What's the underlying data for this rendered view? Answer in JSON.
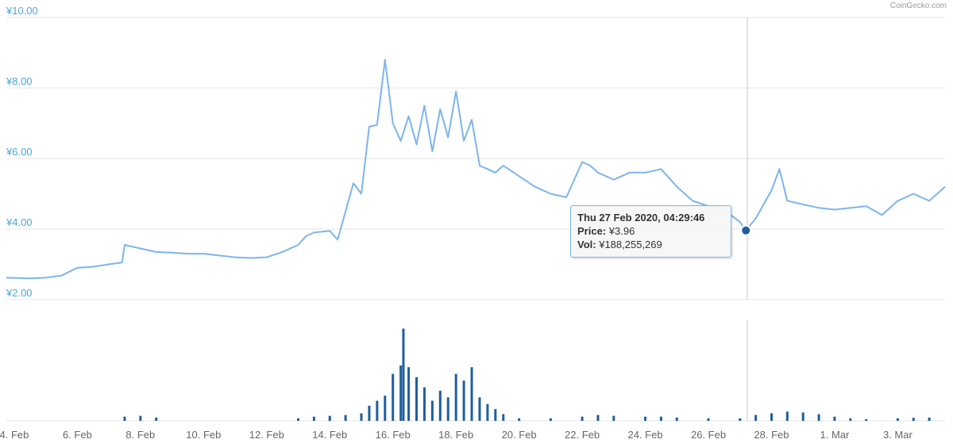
{
  "brand": "CoinGecko.com",
  "colors": {
    "price_line": "#7cb5ec",
    "volume_bar": "#1f5f9f",
    "axis_text": "#4aa8d8"
  },
  "tooltip": {
    "date": "Thu 27 Feb 2020, 04:29:46",
    "price_label": "Price:",
    "price_value": "¥3.96",
    "vol_label": "Vol:",
    "vol_value": "¥188,255,269"
  },
  "chart_data": [
    {
      "type": "line",
      "y_ticks": [
        "¥10.00",
        "¥8.00",
        "¥6.00",
        "¥4.00",
        "¥2.00"
      ],
      "ylim": [
        2,
        10
      ],
      "x_range": [
        "2020-02-03T18:00",
        "2020-03-04T12:00"
      ],
      "x_ticks": [
        "4. Feb",
        "6. Feb",
        "8. Feb",
        "10. Feb",
        "12. Feb",
        "14. Feb",
        "16. Feb",
        "18. Feb",
        "20. Feb",
        "22. Feb",
        "24. Feb",
        "26. Feb",
        "28. Feb",
        "1. Mar",
        "3. Mar"
      ],
      "grid": true,
      "x": [
        "2020-02-03T18:00",
        "2020-02-04T12:00",
        "2020-02-05T00:00",
        "2020-02-05T12:00",
        "2020-02-06T00:00",
        "2020-02-06T12:00",
        "2020-02-07T00:00",
        "2020-02-07T10:00",
        "2020-02-07T12:00",
        "2020-02-08T00:00",
        "2020-02-08T12:00",
        "2020-02-09T00:00",
        "2020-02-09T12:00",
        "2020-02-10T00:00",
        "2020-02-10T12:00",
        "2020-02-11T00:00",
        "2020-02-11T12:00",
        "2020-02-12T00:00",
        "2020-02-12T12:00",
        "2020-02-13T00:00",
        "2020-02-13T06:00",
        "2020-02-13T12:00",
        "2020-02-14T00:00",
        "2020-02-14T06:00",
        "2020-02-14T12:00",
        "2020-02-14T18:00",
        "2020-02-15T00:00",
        "2020-02-15T06:00",
        "2020-02-15T12:00",
        "2020-02-15T18:00",
        "2020-02-16T00:00",
        "2020-02-16T06:00",
        "2020-02-16T12:00",
        "2020-02-16T18:00",
        "2020-02-17T00:00",
        "2020-02-17T06:00",
        "2020-02-17T12:00",
        "2020-02-17T18:00",
        "2020-02-18T00:00",
        "2020-02-18T06:00",
        "2020-02-18T12:00",
        "2020-02-18T18:00",
        "2020-02-19T00:00",
        "2020-02-19T06:00",
        "2020-02-19T12:00",
        "2020-02-20T00:00",
        "2020-02-20T12:00",
        "2020-02-21T00:00",
        "2020-02-21T12:00",
        "2020-02-22T00:00",
        "2020-02-22T06:00",
        "2020-02-22T12:00",
        "2020-02-23T00:00",
        "2020-02-23T12:00",
        "2020-02-24T00:00",
        "2020-02-24T12:00",
        "2020-02-25T00:00",
        "2020-02-25T12:00",
        "2020-02-26T00:00",
        "2020-02-26T12:00",
        "2020-02-27T00:00",
        "2020-02-27T04:30",
        "2020-02-27T12:00",
        "2020-02-28T00:00",
        "2020-02-28T06:00",
        "2020-02-28T12:00",
        "2020-02-29T00:00",
        "2020-02-29T12:00",
        "2020-03-01T00:00",
        "2020-03-01T12:00",
        "2020-03-02T00:00",
        "2020-03-02T12:00",
        "2020-03-03T00:00",
        "2020-03-03T12:00",
        "2020-03-04T00:00",
        "2020-03-04T12:00"
      ],
      "y": [
        2.62,
        2.6,
        2.62,
        2.68,
        2.9,
        2.93,
        3.0,
        3.05,
        3.55,
        3.45,
        3.35,
        3.33,
        3.3,
        3.3,
        3.25,
        3.2,
        3.18,
        3.2,
        3.35,
        3.55,
        3.8,
        3.9,
        3.95,
        3.7,
        4.5,
        5.3,
        5.0,
        6.9,
        6.95,
        8.8,
        7.0,
        6.5,
        7.2,
        6.4,
        7.5,
        6.2,
        7.4,
        6.6,
        7.9,
        6.5,
        7.1,
        5.8,
        5.7,
        5.6,
        5.8,
        5.5,
        5.2,
        5.0,
        4.9,
        5.9,
        5.8,
        5.6,
        5.4,
        5.6,
        5.6,
        5.7,
        5.2,
        4.8,
        4.65,
        4.55,
        4.2,
        3.96,
        4.3,
        5.1,
        5.7,
        4.8,
        4.7,
        4.6,
        4.55,
        4.6,
        4.65,
        4.4,
        4.8,
        5.0,
        4.8,
        5.2
      ]
    },
    {
      "type": "bar",
      "title": "",
      "x_range": [
        "2020-02-03T18:00",
        "2020-03-04T12:00"
      ],
      "x": [
        "2020-02-07T12:00",
        "2020-02-08T00:00",
        "2020-02-08T12:00",
        "2020-02-13T00:00",
        "2020-02-13T12:00",
        "2020-02-14T00:00",
        "2020-02-14T12:00",
        "2020-02-15T00:00",
        "2020-02-15T06:00",
        "2020-02-15T12:00",
        "2020-02-15T18:00",
        "2020-02-16T00:00",
        "2020-02-16T06:00",
        "2020-02-16T08:00",
        "2020-02-16T12:00",
        "2020-02-16T18:00",
        "2020-02-17T00:00",
        "2020-02-17T06:00",
        "2020-02-17T12:00",
        "2020-02-17T18:00",
        "2020-02-18T00:00",
        "2020-02-18T06:00",
        "2020-02-18T12:00",
        "2020-02-18T18:00",
        "2020-02-19T00:00",
        "2020-02-19T06:00",
        "2020-02-19T12:00",
        "2020-02-20T00:00",
        "2020-02-21T00:00",
        "2020-02-22T00:00",
        "2020-02-22T12:00",
        "2020-02-23T00:00",
        "2020-02-24T00:00",
        "2020-02-24T12:00",
        "2020-02-25T00:00",
        "2020-02-26T00:00",
        "2020-02-27T00:00",
        "2020-02-27T12:00",
        "2020-02-28T00:00",
        "2020-02-28T12:00",
        "2020-02-29T00:00",
        "2020-02-29T12:00",
        "2020-03-01T00:00",
        "2020-03-01T12:00",
        "2020-03-02T00:00",
        "2020-03-03T00:00",
        "2020-03-03T12:00",
        "2020-03-04T00:00"
      ],
      "values": [
        2.5,
        3.0,
        2.0,
        1.5,
        2.5,
        3.0,
        3.5,
        4.5,
        9.0,
        12.0,
        15.0,
        28.0,
        33.0,
        55.0,
        32.0,
        26.0,
        20.0,
        12.0,
        18.0,
        14.0,
        28.0,
        24.0,
        32.0,
        14.0,
        10.0,
        7.0,
        4.0,
        1.5,
        1.5,
        2.5,
        3.5,
        3.0,
        2.5,
        2.5,
        2.0,
        1.5,
        1.5,
        3.5,
        4.5,
        5.5,
        5.0,
        4.0,
        2.5,
        1.5,
        1.0,
        1.5,
        1.8,
        2.0
      ],
      "ylim": [
        0,
        60
      ]
    }
  ]
}
